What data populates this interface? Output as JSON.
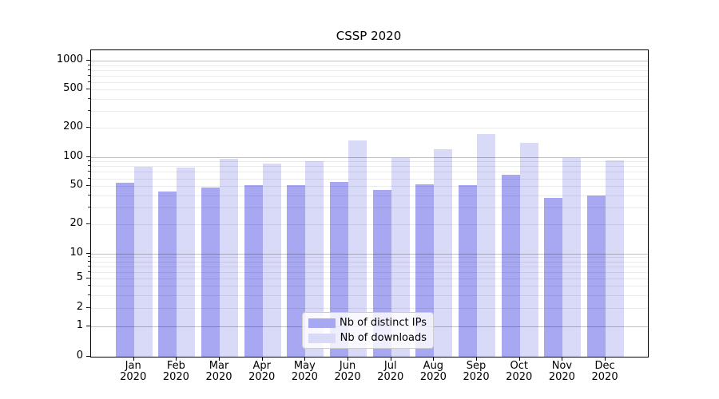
{
  "chart_data": {
    "type": "bar",
    "title": "CSSP 2020",
    "year": "2020",
    "categories": [
      "Jan",
      "Feb",
      "Mar",
      "Apr",
      "May",
      "Jun",
      "Jul",
      "Aug",
      "Sep",
      "Oct",
      "Nov",
      "Dec"
    ],
    "series": [
      {
        "name": "Nb of distinct IPs",
        "color": "#a8a8f2",
        "values": [
          54,
          44,
          48,
          51,
          51,
          55,
          46,
          52,
          51,
          66,
          38,
          40
        ]
      },
      {
        "name": "Nb of downloads",
        "color": "#d9d9f8",
        "values": [
          80,
          78,
          96,
          85,
          91,
          150,
          97,
          121,
          172,
          140,
          98,
          93
        ]
      }
    ],
    "yscale": "symlog",
    "yticks": [
      1000,
      500,
      200,
      100,
      50,
      20,
      10,
      5,
      2,
      1,
      0
    ],
    "ylim": [
      0,
      1300
    ],
    "grid": true,
    "legend_position": "lower-center-inside",
    "colors": {
      "major_grid": "#c4c4c4",
      "minor_grid": "#ebebeb",
      "spine": "#000000",
      "text": "#000000",
      "legend_border": "#cccccc"
    }
  }
}
